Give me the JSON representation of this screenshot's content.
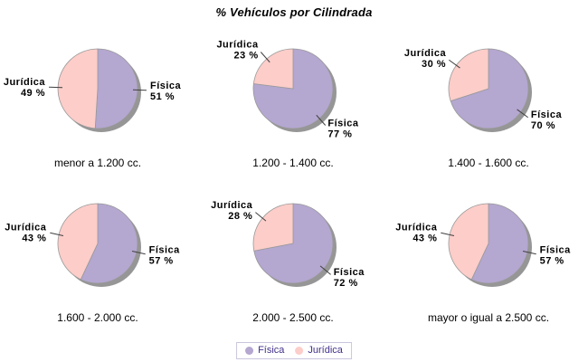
{
  "title": "% Vehículos por Cilindrada",
  "colors": {
    "fisica": "#b4a7d0",
    "juridica": "#fccdc9",
    "shadow": "#969696",
    "slice_stroke": "#999999",
    "leader": "#404040",
    "label_text": "#000000",
    "legend_text": "#433188",
    "legend_border": "#c9c6dd",
    "background": "#ffffff"
  },
  "legend": {
    "position": "bottom-center",
    "items": [
      {
        "label": "Física",
        "color": "#b4a7d0"
      },
      {
        "label": "Jurídica",
        "color": "#fccdc9"
      }
    ]
  },
  "chart_data": {
    "type": "pie",
    "title": "% Vehículos por Cilindrada",
    "unit": "%",
    "start_angle": "top",
    "direction": "clockwise",
    "layout": "2 rows x 3 columns",
    "series_names": [
      "Física",
      "Jurídica"
    ],
    "pies": [
      {
        "category": "menor a 1.200 cc.",
        "slices": [
          {
            "name": "Física",
            "value": 51
          },
          {
            "name": "Jurídica",
            "value": 49
          }
        ]
      },
      {
        "category": "1.200 - 1.400 cc.",
        "slices": [
          {
            "name": "Física",
            "value": 77
          },
          {
            "name": "Jurídica",
            "value": 23
          }
        ]
      },
      {
        "category": "1.400 - 1.600 cc.",
        "slices": [
          {
            "name": "Física",
            "value": 70
          },
          {
            "name": "Jurídica",
            "value": 30
          }
        ]
      },
      {
        "category": "1.600 - 2.000 cc.",
        "slices": [
          {
            "name": "Física",
            "value": 57
          },
          {
            "name": "Jurídica",
            "value": 43
          }
        ]
      },
      {
        "category": "2.000 - 2.500 cc.",
        "slices": [
          {
            "name": "Física",
            "value": 72
          },
          {
            "name": "Jurídica",
            "value": 28
          }
        ]
      },
      {
        "category": "mayor o igual a 2.500 cc.",
        "slices": [
          {
            "name": "Física",
            "value": 57
          },
          {
            "name": "Jurídica",
            "value": 43
          }
        ]
      }
    ]
  }
}
